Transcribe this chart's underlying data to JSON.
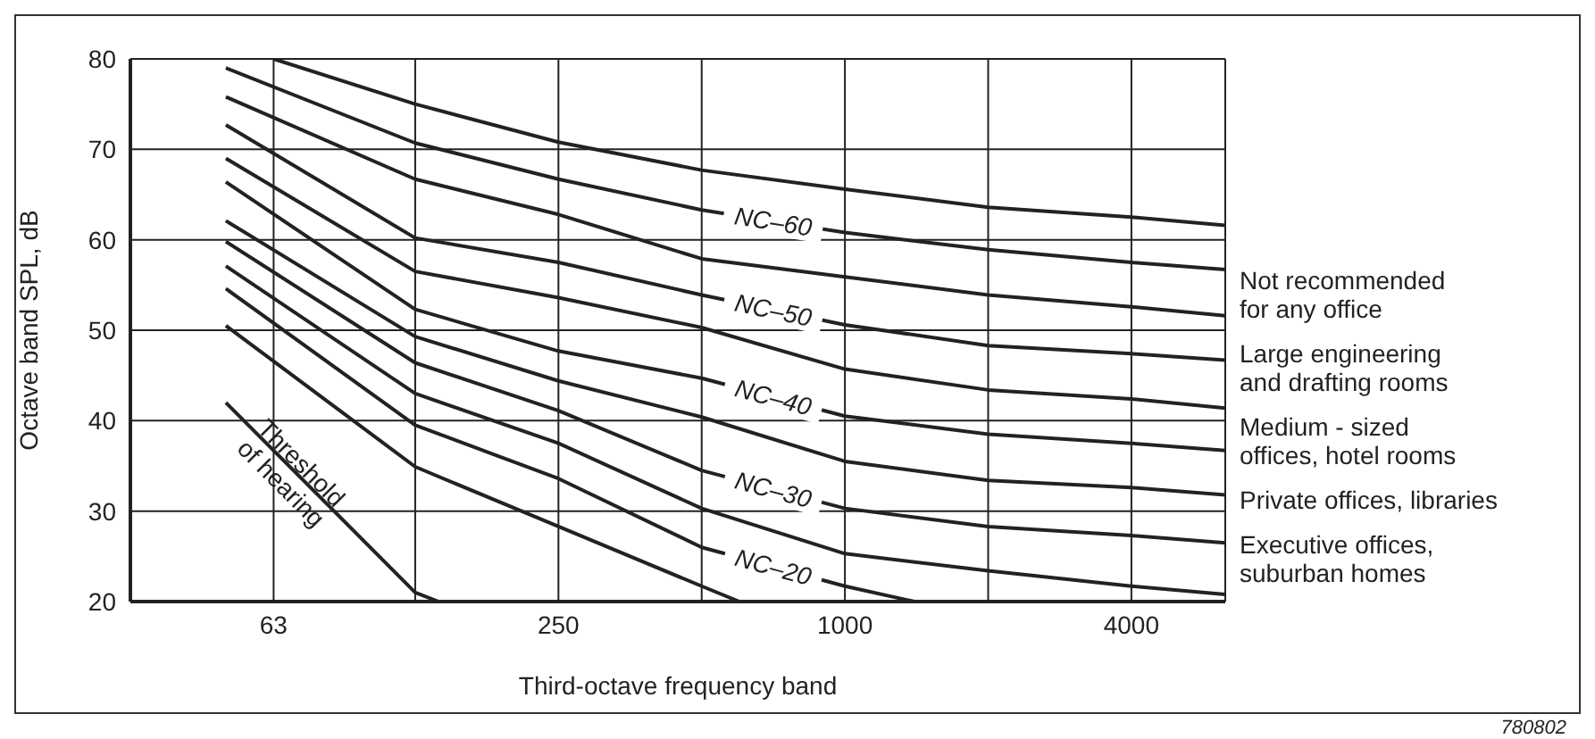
{
  "chart_data": {
    "type": "line",
    "xlabel": "Third-octave frequency band",
    "ylabel": "Octave band SPL, dB",
    "log": "x",
    "xlim": [
      31.5,
      6300
    ],
    "xticks": [
      63,
      {
        "value": 125,
        "label": null
      },
      250,
      {
        "value": 500,
        "label": null
      },
      1000,
      {
        "value": 2000,
        "label": null
      },
      4000
    ],
    "ylim": [
      20,
      80
    ],
    "yticks": [
      20,
      30,
      40,
      50,
      60,
      70,
      80
    ],
    "grid": true,
    "series": [
      {
        "color": "#222222",
        "x": [
          63,
          125,
          250,
          500,
          1000,
          2000,
          4000,
          6300
        ],
        "values": [
          80,
          75,
          70.8,
          67.7,
          65.6,
          63.6,
          62.5,
          61.6
        ]
      },
      {
        "name": "NC–60",
        "color": "#222222",
        "x": [
          50,
          125,
          250,
          500,
          1000,
          2000,
          4000,
          6300
        ],
        "values": [
          79,
          70.7,
          66.7,
          63.3,
          60.8,
          58.9,
          57.5,
          56.7
        ]
      },
      {
        "color": "#222222",
        "x": [
          50,
          125,
          250,
          500,
          1000,
          2000,
          4000,
          6300
        ],
        "values": [
          75.8,
          66.7,
          62.8,
          57.9,
          55.9,
          53.9,
          52.6,
          51.6
        ]
      },
      {
        "name": "NC–50",
        "color": "#222222",
        "x": [
          50,
          125,
          250,
          500,
          1000,
          2000,
          4000,
          6300
        ],
        "values": [
          72.7,
          60.2,
          57.5,
          53.9,
          50.6,
          48.3,
          47.4,
          46.7
        ]
      },
      {
        "color": "#222222",
        "x": [
          50,
          125,
          250,
          500,
          1000,
          2000,
          4000,
          6300
        ],
        "values": [
          69,
          56.5,
          53.6,
          50.3,
          45.7,
          43.4,
          42.4,
          41.4
        ]
      },
      {
        "name": "NC–40",
        "color": "#222222",
        "x": [
          50,
          125,
          250,
          500,
          1000,
          2000,
          4000,
          6300
        ],
        "values": [
          66.4,
          52.3,
          47.7,
          44.7,
          40.5,
          38.5,
          37.5,
          36.7
        ]
      },
      {
        "color": "#222222",
        "x": [
          50,
          125,
          250,
          500,
          1000,
          2000,
          4000,
          6300
        ],
        "values": [
          62.1,
          49.3,
          44.4,
          40.4,
          35.5,
          33.4,
          32.6,
          31.8
        ]
      },
      {
        "name": "NC–30",
        "color": "#222222",
        "x": [
          50,
          125,
          250,
          500,
          1000,
          2000,
          4000,
          6300
        ],
        "values": [
          59.8,
          46.4,
          41.1,
          34.5,
          30.3,
          28.3,
          27.3,
          26.5
        ]
      },
      {
        "color": "#222222",
        "x": [
          50,
          125,
          250,
          500,
          1000,
          2000,
          4000,
          6300
        ],
        "values": [
          57.1,
          43,
          37.5,
          30.3,
          25.3,
          23.4,
          21.7,
          20.8
        ]
      },
      {
        "name": "NC–20",
        "color": "#222222",
        "x": [
          50,
          125,
          250,
          500,
          1000,
          1400
        ],
        "values": [
          54.6,
          39.5,
          33.6,
          26,
          21.7,
          20
        ]
      },
      {
        "color": "#222222",
        "x": [
          50,
          125,
          250,
          500,
          600
        ],
        "values": [
          50.5,
          34.9,
          28.3,
          21.7,
          20
        ]
      },
      {
        "name": "Threshold\nof hearing",
        "color": "#222222",
        "x": [
          50,
          125,
          140
        ],
        "values": [
          42,
          21,
          20
        ]
      }
    ],
    "annotations": [
      "Not recommended\nfor any office",
      "Large engineering\nand drafting rooms",
      "Medium - sized\noffices, hotel rooms",
      "Private offices, libraries",
      "Executive offices,\nsuburban homes",
      "780802"
    ]
  }
}
